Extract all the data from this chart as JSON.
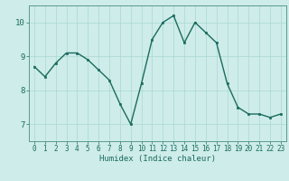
{
  "x": [
    0,
    1,
    2,
    3,
    4,
    5,
    6,
    7,
    8,
    9,
    10,
    11,
    12,
    13,
    14,
    15,
    16,
    17,
    18,
    19,
    20,
    21,
    22,
    23
  ],
  "y": [
    8.7,
    8.4,
    8.8,
    9.1,
    9.1,
    8.9,
    8.6,
    8.3,
    7.6,
    7.0,
    8.2,
    9.5,
    10.0,
    10.2,
    9.4,
    10.0,
    9.7,
    9.4,
    8.2,
    7.5,
    7.3,
    7.3,
    7.2,
    7.3
  ],
  "line_color": "#1a6b5e",
  "marker_color": "#1a6b5e",
  "bg_color": "#ceecea",
  "grid_color": "#a8d8d4",
  "xlabel": "Humidex (Indice chaleur)",
  "xlabel_color": "#1a6b5e",
  "tick_color": "#1a6b5e",
  "spine_color": "#5a9a90",
  "ylim": [
    6.5,
    10.5
  ],
  "xlim": [
    -0.5,
    23.5
  ],
  "yticks": [
    7,
    8,
    9,
    10
  ],
  "xticks": [
    0,
    1,
    2,
    3,
    4,
    5,
    6,
    7,
    8,
    9,
    10,
    11,
    12,
    13,
    14,
    15,
    16,
    17,
    18,
    19,
    20,
    21,
    22,
    23
  ],
  "xlabel_fontsize": 6.5,
  "tick_fontsize": 5.5,
  "ytick_fontsize": 6.5
}
